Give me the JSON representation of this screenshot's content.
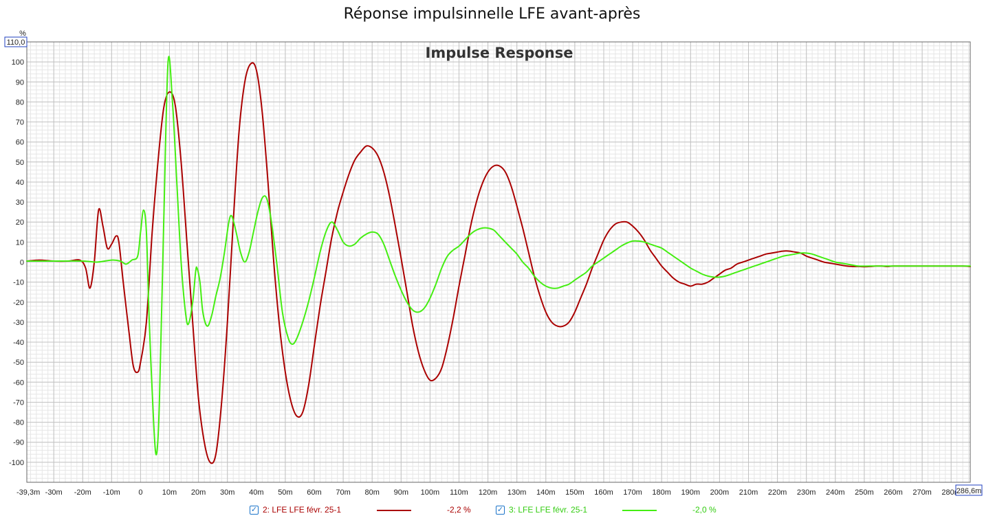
{
  "window_title": "Réponse impulsinnelle LFE avant-après",
  "chart_data": {
    "type": "line",
    "title": "Impulse Response",
    "ylabel": "%",
    "xlim": [
      -39.3,
      286.6
    ],
    "ylim": [
      -110,
      110
    ],
    "x_start_label": "-39,3m",
    "x_end_label": "286,6m",
    "y_top_label": "110,0",
    "x_ticks": [
      -30,
      -20,
      -10,
      0,
      10,
      20,
      30,
      40,
      50,
      60,
      70,
      80,
      90,
      100,
      110,
      120,
      130,
      140,
      150,
      160,
      170,
      180,
      190,
      200,
      210,
      220,
      230,
      240,
      250,
      260,
      270,
      280
    ],
    "x_tick_labels": [
      "-30m",
      "-20m",
      "-10m",
      "0",
      "10m",
      "20m",
      "30m",
      "40m",
      "50m",
      "60m",
      "70m",
      "80m",
      "90m",
      "100m",
      "110m",
      "120m",
      "130m",
      "140m",
      "150m",
      "160m",
      "170m",
      "180m",
      "190m",
      "200m",
      "210m",
      "220m",
      "230m",
      "240m",
      "250m",
      "260m",
      "270m",
      "280m"
    ],
    "y_ticks": [
      100,
      90,
      80,
      70,
      60,
      50,
      40,
      30,
      20,
      10,
      0,
      -10,
      -20,
      -30,
      -40,
      -50,
      -60,
      -70,
      -80,
      -90,
      -100
    ],
    "y_tick_labels": [
      "100",
      "90",
      "80",
      "70",
      "60",
      "50",
      "40",
      "30",
      "20",
      "10",
      "0",
      "-10",
      "-20",
      "-30",
      "-40",
      "-50",
      "-60",
      "-70",
      "-80",
      "-90",
      "-100"
    ],
    "grid": true,
    "legend_position": "bottom",
    "series": [
      {
        "name": "2: LFE LFE févr. 25-1",
        "value_label": "-2,2 %",
        "color": "#aa0000",
        "points": [
          [
            -39.3,
            0.5
          ],
          [
            -35,
            1
          ],
          [
            -30,
            0.5
          ],
          [
            -25,
            0.5
          ],
          [
            -21,
            1
          ],
          [
            -19,
            -3
          ],
          [
            -17.5,
            -13
          ],
          [
            -16,
            0
          ],
          [
            -14.5,
            26
          ],
          [
            -13,
            18
          ],
          [
            -11.5,
            7
          ],
          [
            -10,
            9
          ],
          [
            -8.5,
            13
          ],
          [
            -7.5,
            10
          ],
          [
            -6,
            -10
          ],
          [
            -4,
            -35
          ],
          [
            -2.5,
            -52
          ],
          [
            -1,
            -55
          ],
          [
            0,
            -50
          ],
          [
            2,
            -30
          ],
          [
            4,
            15
          ],
          [
            6,
            50
          ],
          [
            8,
            77
          ],
          [
            10,
            85
          ],
          [
            12,
            78
          ],
          [
            14,
            50
          ],
          [
            16,
            10
          ],
          [
            18,
            -30
          ],
          [
            20,
            -68
          ],
          [
            22,
            -90
          ],
          [
            24,
            -100
          ],
          [
            26,
            -96
          ],
          [
            28,
            -70
          ],
          [
            30,
            -30
          ],
          [
            32,
            20
          ],
          [
            34,
            65
          ],
          [
            36,
            90
          ],
          [
            38,
            99
          ],
          [
            40,
            96
          ],
          [
            42,
            75
          ],
          [
            44,
            40
          ],
          [
            46,
            0
          ],
          [
            48,
            -32
          ],
          [
            50,
            -55
          ],
          [
            52,
            -70
          ],
          [
            54,
            -77
          ],
          [
            56,
            -75
          ],
          [
            58,
            -62
          ],
          [
            60,
            -42
          ],
          [
            62,
            -22
          ],
          [
            64,
            -5
          ],
          [
            66,
            12
          ],
          [
            68,
            25
          ],
          [
            70,
            35
          ],
          [
            72,
            44
          ],
          [
            74,
            51
          ],
          [
            76,
            55
          ],
          [
            78,
            58
          ],
          [
            80,
            57
          ],
          [
            82,
            53
          ],
          [
            84,
            45
          ],
          [
            86,
            33
          ],
          [
            88,
            18
          ],
          [
            90,
            2
          ],
          [
            92,
            -15
          ],
          [
            94,
            -32
          ],
          [
            96,
            -45
          ],
          [
            98,
            -54
          ],
          [
            100,
            -59
          ],
          [
            102,
            -58
          ],
          [
            104,
            -53
          ],
          [
            106,
            -42
          ],
          [
            108,
            -28
          ],
          [
            110,
            -12
          ],
          [
            112,
            3
          ],
          [
            114,
            18
          ],
          [
            116,
            30
          ],
          [
            118,
            39
          ],
          [
            120,
            45
          ],
          [
            122,
            48
          ],
          [
            124,
            48
          ],
          [
            126,
            45
          ],
          [
            128,
            38
          ],
          [
            130,
            28
          ],
          [
            132,
            17
          ],
          [
            134,
            5
          ],
          [
            136,
            -7
          ],
          [
            138,
            -17
          ],
          [
            140,
            -25
          ],
          [
            142,
            -30
          ],
          [
            144,
            -32
          ],
          [
            146,
            -32
          ],
          [
            148,
            -30
          ],
          [
            150,
            -25
          ],
          [
            152,
            -18
          ],
          [
            154,
            -11
          ],
          [
            156,
            -3
          ],
          [
            158,
            4
          ],
          [
            160,
            11
          ],
          [
            162,
            16
          ],
          [
            164,
            19
          ],
          [
            166,
            20
          ],
          [
            168,
            20
          ],
          [
            170,
            18
          ],
          [
            172,
            15
          ],
          [
            174,
            11
          ],
          [
            176,
            6
          ],
          [
            178,
            2
          ],
          [
            180,
            -2
          ],
          [
            182,
            -5
          ],
          [
            184,
            -8
          ],
          [
            186,
            -10
          ],
          [
            188,
            -11
          ],
          [
            190,
            -12
          ],
          [
            192,
            -11
          ],
          [
            194,
            -11
          ],
          [
            196,
            -10
          ],
          [
            198,
            -8
          ],
          [
            200,
            -6
          ],
          [
            202,
            -4
          ],
          [
            204,
            -3
          ],
          [
            206,
            -1
          ],
          [
            208,
            0
          ],
          [
            210,
            1
          ],
          [
            212,
            2
          ],
          [
            214,
            3
          ],
          [
            216,
            4
          ],
          [
            218,
            4.5
          ],
          [
            220,
            5
          ],
          [
            222,
            5.5
          ],
          [
            224,
            5.5
          ],
          [
            226,
            5
          ],
          [
            228,
            4.5
          ],
          [
            230,
            3
          ],
          [
            232,
            2
          ],
          [
            234,
            1
          ],
          [
            236,
            0
          ],
          [
            238,
            -0.5
          ],
          [
            240,
            -1
          ],
          [
            242,
            -1.5
          ],
          [
            244,
            -2
          ],
          [
            246,
            -2.2
          ],
          [
            248,
            -2.2
          ],
          [
            250,
            -2.3
          ],
          [
            252,
            -2.2
          ],
          [
            254,
            -2
          ],
          [
            256,
            -2
          ],
          [
            258,
            -2.2
          ],
          [
            260,
            -2
          ],
          [
            264,
            -2
          ],
          [
            268,
            -2
          ],
          [
            272,
            -2
          ],
          [
            276,
            -2
          ],
          [
            280,
            -2
          ],
          [
            284,
            -2
          ],
          [
            286.6,
            -2.2
          ]
        ]
      },
      {
        "name": "3: LFE LFE févr. 25-1",
        "value_label": "-2,0 %",
        "color": "#44ee11",
        "points": [
          [
            -39.3,
            0.5
          ],
          [
            -30,
            0.5
          ],
          [
            -20,
            0.5
          ],
          [
            -15,
            0
          ],
          [
            -10,
            1
          ],
          [
            -7,
            0.5
          ],
          [
            -5,
            -1
          ],
          [
            -3,
            1
          ],
          [
            -1,
            3
          ],
          [
            0,
            15
          ],
          [
            1,
            26
          ],
          [
            2,
            15
          ],
          [
            3,
            -30
          ],
          [
            4.5,
            -80
          ],
          [
            5.5,
            -96
          ],
          [
            6.5,
            -70
          ],
          [
            8,
            20
          ],
          [
            9.5,
            100
          ],
          [
            11,
            80
          ],
          [
            12.5,
            40
          ],
          [
            14,
            0
          ],
          [
            15.5,
            -25
          ],
          [
            16.5,
            -31
          ],
          [
            18,
            -20
          ],
          [
            19,
            -5
          ],
          [
            19.5,
            -3
          ],
          [
            20.5,
            -10
          ],
          [
            21.5,
            -25
          ],
          [
            23,
            -32
          ],
          [
            24.5,
            -27
          ],
          [
            26,
            -17
          ],
          [
            27.5,
            -8
          ],
          [
            29,
            5
          ],
          [
            30.5,
            20
          ],
          [
            31.5,
            23
          ],
          [
            33,
            15
          ],
          [
            34.5,
            5
          ],
          [
            36,
            0
          ],
          [
            37.5,
            5
          ],
          [
            39,
            15
          ],
          [
            40.5,
            25
          ],
          [
            42,
            32
          ],
          [
            43.5,
            32
          ],
          [
            45,
            22
          ],
          [
            47,
            0
          ],
          [
            49,
            -25
          ],
          [
            51,
            -38
          ],
          [
            52.5,
            -41
          ],
          [
            54,
            -38
          ],
          [
            56,
            -30
          ],
          [
            58,
            -20
          ],
          [
            60,
            -8
          ],
          [
            62,
            5
          ],
          [
            64,
            15
          ],
          [
            66,
            20
          ],
          [
            68,
            16
          ],
          [
            70,
            10
          ],
          [
            72,
            8
          ],
          [
            74,
            9
          ],
          [
            76,
            12
          ],
          [
            78,
            14
          ],
          [
            80,
            15
          ],
          [
            82,
            14
          ],
          [
            84,
            9
          ],
          [
            86,
            1
          ],
          [
            88,
            -7
          ],
          [
            90,
            -14
          ],
          [
            92,
            -20
          ],
          [
            94,
            -24
          ],
          [
            96,
            -25
          ],
          [
            98,
            -23
          ],
          [
            100,
            -18
          ],
          [
            102,
            -11
          ],
          [
            104,
            -3
          ],
          [
            106,
            3
          ],
          [
            108,
            6
          ],
          [
            110,
            8
          ],
          [
            112,
            11
          ],
          [
            114,
            14
          ],
          [
            116,
            16
          ],
          [
            118,
            17
          ],
          [
            120,
            17
          ],
          [
            122,
            16
          ],
          [
            124,
            13
          ],
          [
            126,
            10
          ],
          [
            128,
            7
          ],
          [
            130,
            4
          ],
          [
            132,
            0
          ],
          [
            134,
            -3
          ],
          [
            136,
            -7
          ],
          [
            138,
            -10
          ],
          [
            140,
            -12
          ],
          [
            142,
            -13
          ],
          [
            144,
            -13
          ],
          [
            146,
            -12
          ],
          [
            148,
            -11
          ],
          [
            150,
            -9
          ],
          [
            152,
            -7
          ],
          [
            154,
            -5
          ],
          [
            156,
            -2
          ],
          [
            158,
            0
          ],
          [
            160,
            2
          ],
          [
            162,
            4
          ],
          [
            164,
            6
          ],
          [
            166,
            8
          ],
          [
            168,
            9.5
          ],
          [
            170,
            10.5
          ],
          [
            172,
            10.5
          ],
          [
            174,
            10
          ],
          [
            176,
            9
          ],
          [
            178,
            8
          ],
          [
            180,
            7
          ],
          [
            182,
            5
          ],
          [
            184,
            3
          ],
          [
            186,
            1
          ],
          [
            188,
            -1
          ],
          [
            190,
            -3
          ],
          [
            192,
            -4.5
          ],
          [
            194,
            -6
          ],
          [
            196,
            -7
          ],
          [
            198,
            -7.5
          ],
          [
            200,
            -7.5
          ],
          [
            202,
            -7
          ],
          [
            204,
            -6
          ],
          [
            206,
            -5
          ],
          [
            208,
            -4
          ],
          [
            210,
            -3
          ],
          [
            212,
            -2
          ],
          [
            214,
            -1
          ],
          [
            216,
            0
          ],
          [
            218,
            1
          ],
          [
            220,
            2
          ],
          [
            222,
            3
          ],
          [
            224,
            3.5
          ],
          [
            226,
            4
          ],
          [
            228,
            4.5
          ],
          [
            230,
            4.5
          ],
          [
            232,
            4
          ],
          [
            234,
            3
          ],
          [
            236,
            2
          ],
          [
            238,
            1
          ],
          [
            240,
            0
          ],
          [
            242,
            -0.5
          ],
          [
            244,
            -1
          ],
          [
            246,
            -1.5
          ],
          [
            248,
            -2
          ],
          [
            252,
            -2
          ],
          [
            256,
            -2
          ],
          [
            260,
            -2
          ],
          [
            264,
            -2
          ],
          [
            270,
            -2
          ],
          [
            276,
            -2
          ],
          [
            282,
            -2
          ],
          [
            286.6,
            -2
          ]
        ]
      }
    ]
  }
}
